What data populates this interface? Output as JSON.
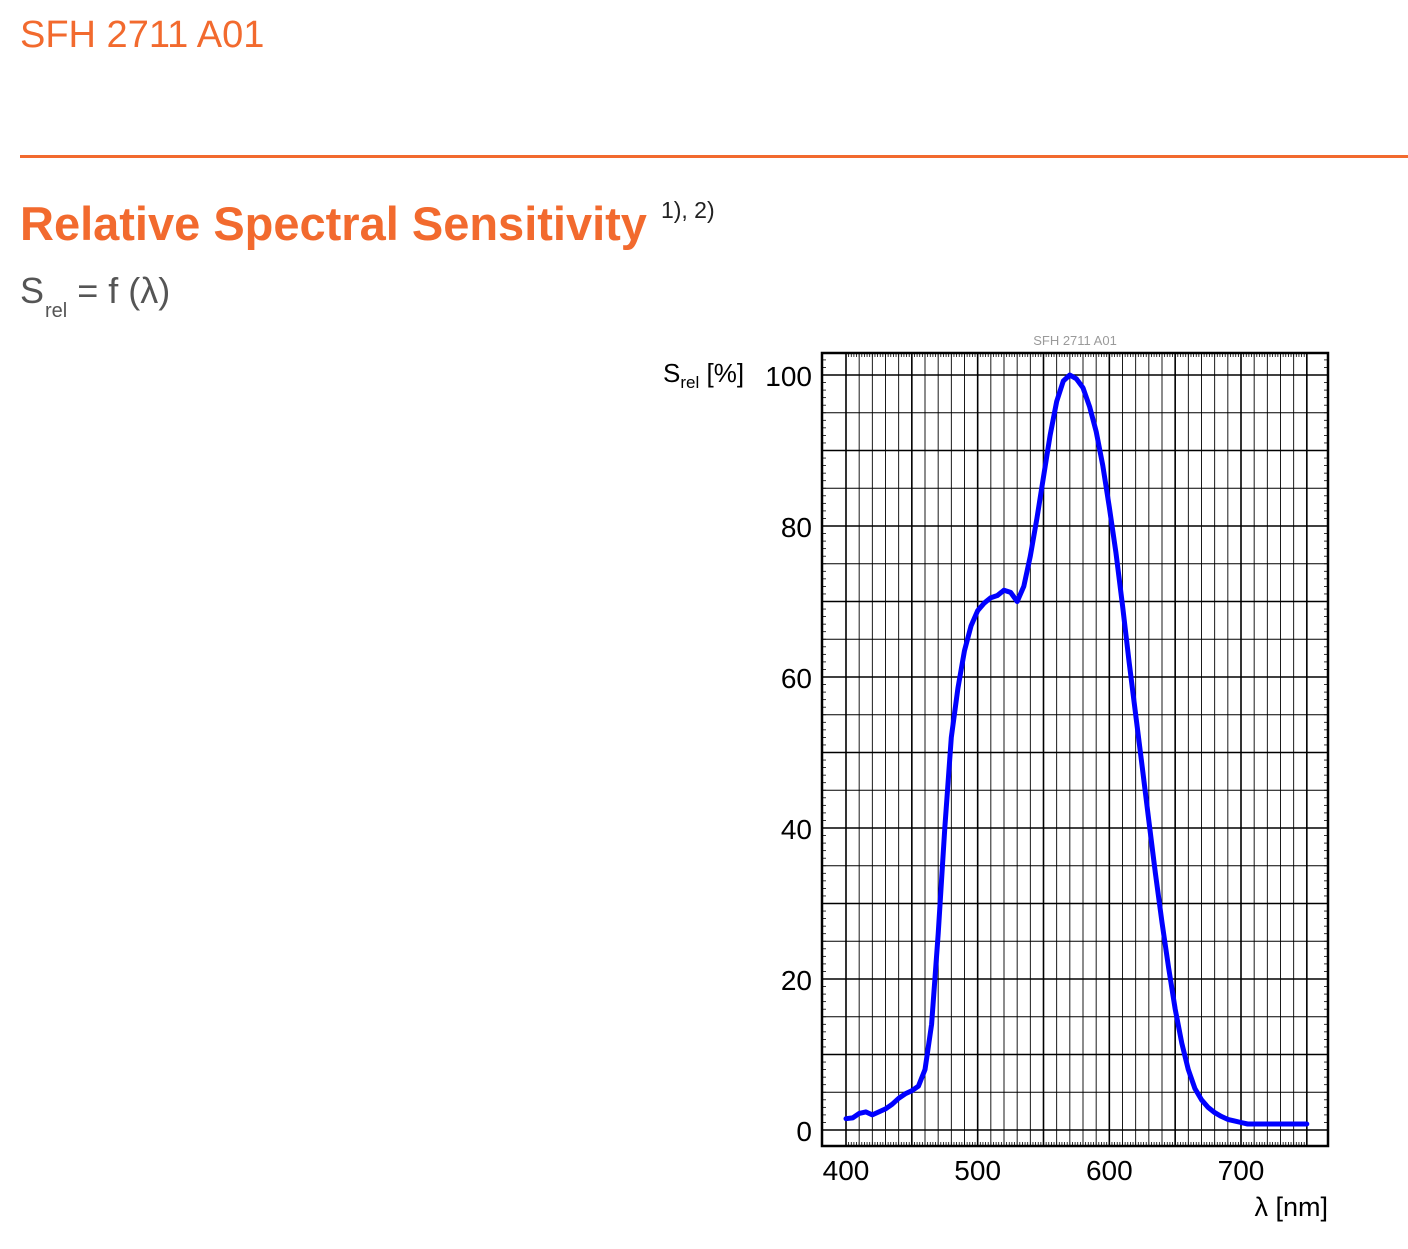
{
  "header": {
    "product": "SFH 2711 A01",
    "section_title": "Relative Spectral Sensitivity",
    "footnotes": "1), 2)",
    "formula_var": "S",
    "formula_sub": "rel",
    "formula_rest": "= f (λ)"
  },
  "colors": {
    "accent": "#f26a2e",
    "curve": "#0000ff"
  },
  "chart_data": {
    "type": "line",
    "chart_title": "SFH 2711 A01",
    "ylabel_main": "S",
    "ylabel_sub": "rel",
    "ylabel_unit": "[%]",
    "xlabel": "λ [nm]",
    "xlim": [
      400,
      750
    ],
    "ylim": [
      0,
      102
    ],
    "x_ticks": [
      400,
      500,
      600,
      700
    ],
    "y_ticks": [
      0,
      20,
      40,
      60,
      80,
      100
    ],
    "grid": true,
    "series": [
      {
        "x": [
          400,
          405,
          410,
          415,
          420,
          425,
          430,
          435,
          440,
          445,
          450,
          455,
          460,
          465,
          470,
          475,
          480,
          485,
          490,
          495,
          500,
          505,
          510,
          515,
          520,
          525,
          530,
          535,
          540,
          545,
          550,
          555,
          560,
          565,
          570,
          575,
          580,
          585,
          590,
          595,
          600,
          605,
          610,
          615,
          620,
          625,
          630,
          635,
          640,
          645,
          650,
          655,
          660,
          665,
          670,
          675,
          680,
          685,
          690,
          695,
          700,
          705,
          710,
          715,
          720,
          725,
          730,
          735,
          740,
          745,
          750
        ],
        "y": [
          1.5,
          1.6,
          2.2,
          2.4,
          2.0,
          2.4,
          2.8,
          3.4,
          4.2,
          4.8,
          5.2,
          5.8,
          8.0,
          14.0,
          26.0,
          40.0,
          52.0,
          58.5,
          63.5,
          66.8,
          68.8,
          69.8,
          70.5,
          70.8,
          71.5,
          71.2,
          70.0,
          72.0,
          76.0,
          81.0,
          86.5,
          92.0,
          96.5,
          99.2,
          100.0,
          99.5,
          98.3,
          95.8,
          92.5,
          88.0,
          82.5,
          76.5,
          69.5,
          62.0,
          55.0,
          48.0,
          41.0,
          34.0,
          27.5,
          21.5,
          16.0,
          11.5,
          8.0,
          5.5,
          4.0,
          3.0,
          2.3,
          1.8,
          1.4,
          1.2,
          1.0,
          0.8,
          0.8,
          0.8,
          0.8,
          0.8,
          0.8,
          0.8,
          0.8,
          0.8,
          0.8
        ]
      }
    ]
  }
}
